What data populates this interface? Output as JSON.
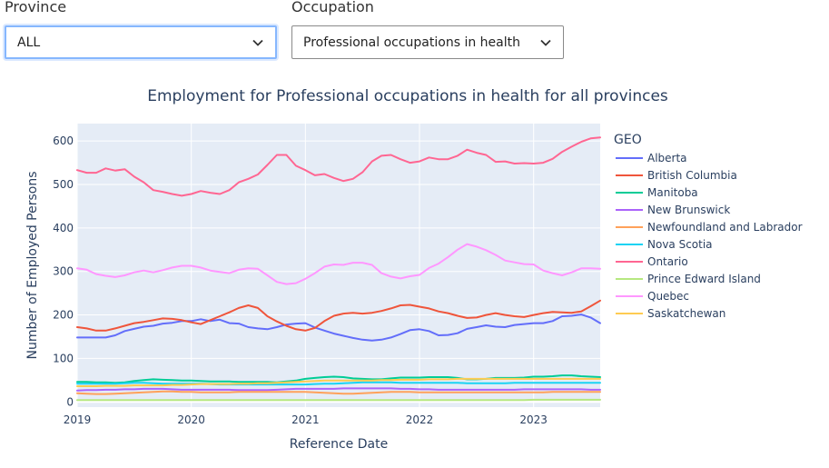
{
  "filters": {
    "province": {
      "label": "Province",
      "value": "ALL"
    },
    "occupation": {
      "label": "Occupation",
      "value": "Professional occupations in health"
    }
  },
  "chart_data": {
    "type": "line",
    "title": "Employment for Professional occupations in health for all provinces",
    "xlabel": "Reference Date",
    "ylabel": "Number of Employed Persons",
    "x_range": [
      "2019-01",
      "2023-08"
    ],
    "x_ticks": [
      "2019",
      "2020",
      "2021",
      "2022",
      "2023"
    ],
    "ylim": [
      -12,
      640
    ],
    "y_ticks": [
      0,
      100,
      200,
      300,
      400,
      500,
      600
    ],
    "grid": true,
    "legend_title": "GEO",
    "legend_position": "right",
    "x": [
      "2019-01",
      "2019-02",
      "2019-03",
      "2019-04",
      "2019-05",
      "2019-06",
      "2019-07",
      "2019-08",
      "2019-09",
      "2019-10",
      "2019-11",
      "2019-12",
      "2020-01",
      "2020-02",
      "2020-03",
      "2020-04",
      "2020-05",
      "2020-06",
      "2020-07",
      "2020-08",
      "2020-09",
      "2020-10",
      "2020-11",
      "2020-12",
      "2021-01",
      "2021-02",
      "2021-03",
      "2021-04",
      "2021-05",
      "2021-06",
      "2021-07",
      "2021-08",
      "2021-09",
      "2021-10",
      "2021-11",
      "2021-12",
      "2022-01",
      "2022-02",
      "2022-03",
      "2022-04",
      "2022-05",
      "2022-06",
      "2022-07",
      "2022-08",
      "2022-09",
      "2022-10",
      "2022-11",
      "2022-12",
      "2023-01",
      "2023-02",
      "2023-03",
      "2023-04",
      "2023-05",
      "2023-06",
      "2023-07",
      "2023-08"
    ],
    "series": [
      {
        "name": "Alberta",
        "color": "#636efa",
        "values": [
          148,
          148,
          148,
          148,
          153,
          163,
          168,
          173,
          175,
          180,
          182,
          186,
          186,
          190,
          186,
          189,
          181,
          180,
          172,
          169,
          167,
          172,
          178,
          180,
          181,
          171,
          164,
          157,
          152,
          147,
          143,
          141,
          143,
          148,
          156,
          165,
          167,
          163,
          153,
          154,
          158,
          168,
          172,
          176,
          173,
          172,
          177,
          179,
          181,
          181,
          186,
          197,
          198,
          201,
          194,
          181
        ]
      },
      {
        "name": "British Columbia",
        "color": "#EF553B",
        "values": [
          172,
          169,
          164,
          164,
          169,
          175,
          181,
          184,
          188,
          192,
          191,
          188,
          183,
          179,
          188,
          197,
          206,
          216,
          222,
          216,
          197,
          185,
          175,
          167,
          164,
          170,
          186,
          198,
          203,
          205,
          203,
          205,
          209,
          215,
          222,
          223,
          219,
          215,
          208,
          204,
          198,
          193,
          194,
          200,
          204,
          200,
          197,
          195,
          200,
          204,
          207,
          206,
          205,
          208,
          220,
          233
        ]
      },
      {
        "name": "Manitoba",
        "color": "#00cc96",
        "values": [
          46,
          46,
          45,
          45,
          44,
          45,
          48,
          50,
          52,
          51,
          50,
          49,
          49,
          48,
          47,
          47,
          47,
          46,
          46,
          46,
          46,
          45,
          47,
          49,
          53,
          55,
          57,
          58,
          57,
          54,
          53,
          52,
          52,
          54,
          56,
          56,
          56,
          57,
          57,
          57,
          55,
          52,
          52,
          53,
          55,
          55,
          55,
          56,
          58,
          58,
          59,
          61,
          61,
          59,
          58,
          57
        ]
      },
      {
        "name": "New Brunswick",
        "color": "#ab63fa",
        "values": [
          26,
          27,
          27,
          28,
          28,
          29,
          29,
          30,
          30,
          30,
          29,
          28,
          28,
          28,
          28,
          28,
          28,
          27,
          27,
          27,
          27,
          28,
          29,
          30,
          30,
          30,
          30,
          30,
          31,
          31,
          31,
          31,
          31,
          31,
          30,
          30,
          29,
          29,
          28,
          28,
          28,
          28,
          28,
          28,
          28,
          28,
          28,
          29,
          29,
          29,
          29,
          29,
          29,
          29,
          28,
          28
        ]
      },
      {
        "name": "Newfoundland and Labrador",
        "color": "#FFA15A",
        "values": [
          20,
          19,
          18,
          18,
          19,
          20,
          21,
          22,
          23,
          24,
          24,
          23,
          23,
          22,
          22,
          22,
          22,
          23,
          23,
          23,
          23,
          23,
          23,
          23,
          23,
          22,
          21,
          20,
          19,
          19,
          20,
          21,
          22,
          23,
          23,
          23,
          22,
          22,
          22,
          22,
          22,
          22,
          22,
          22,
          22,
          22,
          22,
          22,
          22,
          22,
          23,
          23,
          23,
          23,
          23,
          23
        ]
      },
      {
        "name": "Nova Scotia",
        "color": "#19d3f3",
        "values": [
          42,
          42,
          42,
          42,
          42,
          43,
          44,
          44,
          43,
          42,
          42,
          42,
          42,
          42,
          41,
          40,
          40,
          40,
          40,
          40,
          40,
          40,
          40,
          40,
          40,
          41,
          42,
          42,
          43,
          44,
          45,
          45,
          45,
          45,
          44,
          44,
          44,
          44,
          44,
          44,
          44,
          43,
          43,
          43,
          43,
          43,
          44,
          44,
          44,
          44,
          44,
          44,
          44,
          44,
          44,
          44
        ]
      },
      {
        "name": "Ontario",
        "color": "#FF6692",
        "values": [
          533,
          527,
          527,
          537,
          532,
          535,
          518,
          505,
          487,
          483,
          478,
          474,
          478,
          485,
          481,
          478,
          487,
          505,
          513,
          523,
          545,
          568,
          568,
          543,
          533,
          521,
          524,
          515,
          508,
          513,
          528,
          553,
          566,
          568,
          558,
          550,
          553,
          562,
          558,
          558,
          566,
          580,
          573,
          568,
          552,
          553,
          548,
          549,
          548,
          550,
          559,
          575,
          587,
          598,
          606,
          608
        ]
      },
      {
        "name": "Prince Edward Island",
        "color": "#B6E880",
        "values": [
          4,
          4,
          4,
          4,
          4,
          4,
          4,
          4,
          4,
          4,
          4,
          4,
          4,
          4,
          4,
          4,
          4,
          4,
          4,
          4,
          4,
          4,
          4,
          4,
          4,
          4,
          4,
          4,
          4,
          4,
          4,
          4,
          4,
          4,
          4,
          4,
          4,
          4,
          4,
          4,
          4,
          4,
          4,
          4,
          4,
          4,
          4,
          4,
          5,
          5,
          5,
          5,
          5,
          5,
          5,
          5
        ]
      },
      {
        "name": "Quebec",
        "color": "#FF97FF",
        "values": [
          307,
          304,
          294,
          290,
          287,
          291,
          298,
          302,
          298,
          303,
          309,
          313,
          313,
          309,
          302,
          299,
          296,
          304,
          307,
          306,
          291,
          276,
          271,
          273,
          283,
          296,
          311,
          316,
          315,
          320,
          320,
          315,
          296,
          288,
          284,
          289,
          292,
          308,
          318,
          333,
          350,
          363,
          357,
          349,
          338,
          325,
          321,
          317,
          316,
          302,
          296,
          291,
          298,
          307,
          307,
          306
        ]
      },
      {
        "name": "Saskatchewan",
        "color": "#FECB52",
        "values": [
          36,
          36,
          36,
          37,
          37,
          37,
          38,
          38,
          38,
          38,
          39,
          39,
          40,
          41,
          41,
          41,
          41,
          42,
          42,
          43,
          43,
          44,
          45,
          46,
          47,
          48,
          49,
          49,
          49,
          49,
          49,
          49,
          50,
          50,
          51,
          51,
          51,
          52,
          52,
          52,
          53,
          53,
          53,
          53,
          53,
          53,
          53,
          53,
          53,
          53,
          53,
          53,
          53,
          53,
          53,
          53
        ]
      }
    ]
  }
}
